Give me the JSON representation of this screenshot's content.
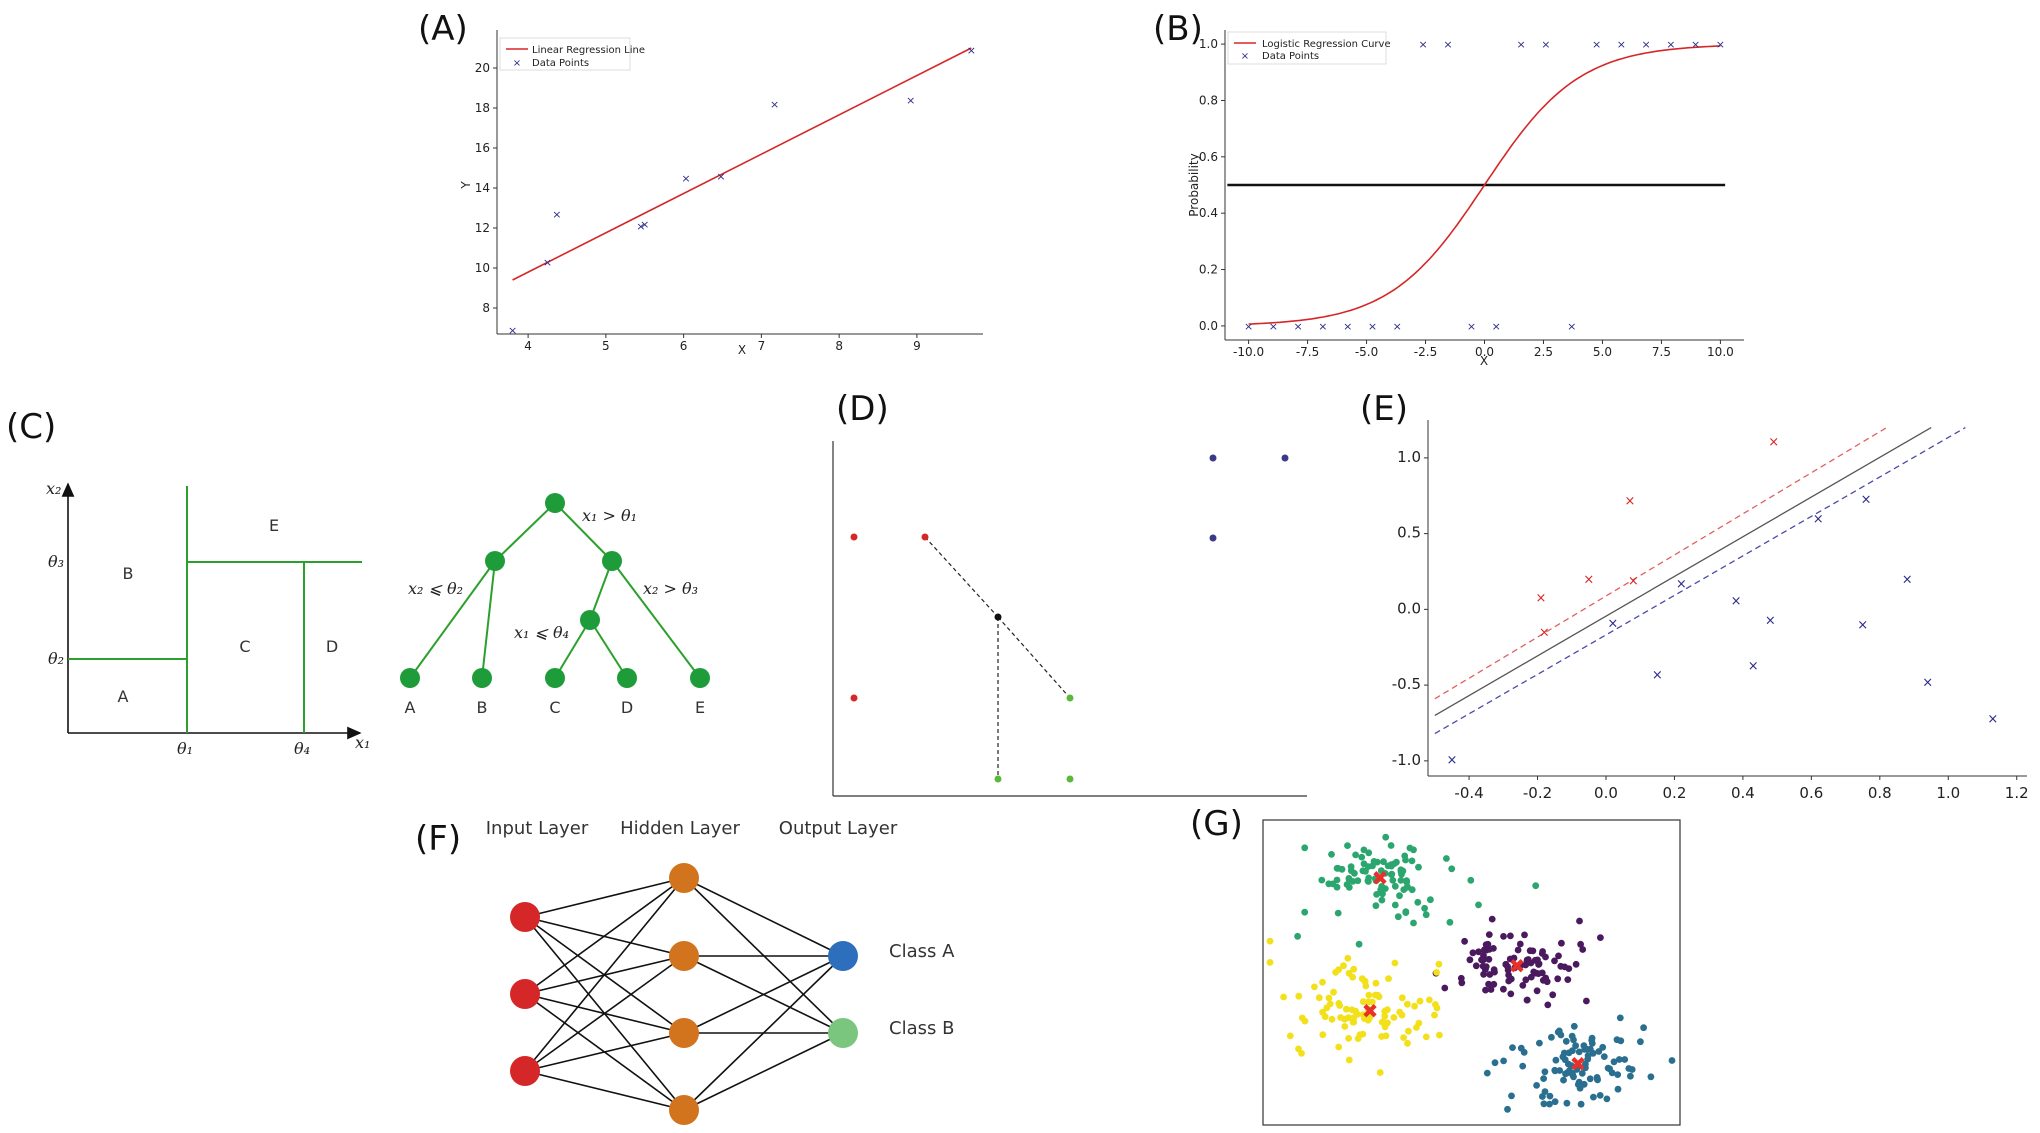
{
  "panel_labels": [
    "(A)",
    "(B)",
    "(C)",
    "(D)",
    "(E)",
    "(F)",
    "(G)"
  ],
  "colors": {
    "red_line": "#d62728",
    "blue_marker": "#2b2b8c",
    "green_tree": "#2ca02c",
    "input_node": "#d62728",
    "hidden_node": "#d2731e",
    "class_a_node": "#2e6fbd",
    "class_b_node": "#7bc67e",
    "cluster_green": "#2ca66f",
    "cluster_purple": "#4b1a5e",
    "cluster_yellow": "#f2e01a",
    "cluster_teal": "#2a6f8f",
    "centroid": "#e8302a"
  },
  "chart_data": [
    {
      "id": "A",
      "type": "scatter",
      "title": "",
      "xlabel": "X",
      "ylabel": "Y",
      "xlim": [
        3.6,
        9.85
      ],
      "ylim": [
        6.7,
        21.9
      ],
      "xticks": [
        4,
        5,
        6,
        7,
        8,
        9
      ],
      "yticks": [
        8,
        10,
        12,
        14,
        16,
        18,
        20
      ],
      "legend": [
        "Linear Regression Line",
        "Data Points"
      ],
      "legend_position": "top-left",
      "line": {
        "name": "Linear Regression Line",
        "x": [
          3.8,
          9.7
        ],
        "y": [
          9.4,
          21.0
        ]
      },
      "points": {
        "name": "Data Points",
        "x": [
          3.8,
          4.25,
          4.37,
          5.45,
          5.5,
          6.03,
          6.48,
          7.17,
          8.92,
          9.7
        ],
        "y": [
          6.9,
          10.3,
          12.7,
          12.1,
          12.2,
          14.5,
          14.6,
          18.2,
          18.4,
          20.9
        ]
      }
    },
    {
      "id": "B",
      "type": "line",
      "title": "",
      "xlabel": "X",
      "ylabel": "Probability",
      "xlim": [
        -11,
        11
      ],
      "ylim": [
        -0.05,
        1.05
      ],
      "xticks": [
        -10.0,
        -7.5,
        -5.0,
        -2.5,
        0.0,
        2.5,
        5.0,
        7.5,
        10.0
      ],
      "xtick_labels": [
        "-10.0",
        "-7.5",
        "-5.0",
        "-2.5",
        "0.0",
        "2.5",
        "5.0",
        "7.5",
        "10.0"
      ],
      "yticks": [
        0.0,
        0.2,
        0.4,
        0.6,
        0.8,
        1.0
      ],
      "ytick_labels": [
        "0.0",
        "0.2",
        "0.4",
        "0.6",
        "0.8",
        "1.0"
      ],
      "legend": [
        "Logistic Regression Curve",
        "Data Points"
      ],
      "legend_position": "top-left",
      "curve": {
        "name": "Logistic Regression Curve",
        "x_range": [
          -10,
          10
        ],
        "steepness": 0.5,
        "midpoint": 0
      },
      "threshold": 0.5,
      "points": {
        "name": "Data Points",
        "x": [
          -10.0,
          -8.95,
          -7.9,
          -6.85,
          -5.8,
          -4.75,
          -3.7,
          0.5,
          -0.55,
          3.7,
          -2.6,
          -1.55,
          1.55,
          2.6,
          4.75,
          5.8,
          6.85,
          7.9,
          8.95,
          10.0
        ],
        "y": [
          0,
          0,
          0,
          0,
          0,
          0,
          0,
          0,
          0,
          0,
          1,
          1,
          1,
          1,
          1,
          1,
          1,
          1,
          1,
          1
        ]
      }
    },
    {
      "id": "E",
      "type": "scatter",
      "title": "",
      "xlabel": "",
      "ylabel": "",
      "xlim": [
        -0.52,
        1.23
      ],
      "ylim": [
        -1.1,
        1.25
      ],
      "xticks": [
        -0.4,
        -0.2,
        0.0,
        0.2,
        0.4,
        0.6,
        0.8,
        1.0,
        1.2
      ],
      "xtick_labels": [
        "-0.4",
        "-0.2",
        "0.0",
        "0.2",
        "0.4",
        "0.6",
        "0.8",
        "1.0",
        "1.2"
      ],
      "yticks": [
        -1.0,
        -0.5,
        0.0,
        0.5,
        1.0
      ],
      "ytick_labels": [
        "-1.0",
        "-0.5",
        "0.0",
        "0.5",
        "1.0"
      ],
      "decision_boundary": {
        "x": [
          -0.5,
          0.95
        ],
        "y": [
          -0.7,
          1.2
        ]
      },
      "margin_upper": {
        "x": [
          -0.5,
          0.82
        ],
        "y": [
          -0.59,
          1.2
        ]
      },
      "margin_lower": {
        "x": [
          -0.5,
          1.05
        ],
        "y": [
          -0.82,
          1.2
        ]
      },
      "series": [
        {
          "name": "red",
          "x": [
            -0.19,
            -0.18,
            -0.05,
            0.07,
            0.08,
            0.49
          ],
          "y": [
            0.08,
            -0.15,
            0.2,
            0.72,
            0.19,
            1.11
          ]
        },
        {
          "name": "blue",
          "x": [
            -0.45,
            0.02,
            0.15,
            0.22,
            0.38,
            0.43,
            0.48,
            0.62,
            0.75,
            0.76,
            0.88,
            0.94,
            1.13
          ],
          "y": [
            -0.99,
            -0.09,
            -0.43,
            0.17,
            0.06,
            -0.37,
            -0.07,
            0.6,
            -0.1,
            0.73,
            0.2,
            -0.48,
            -0.72
          ]
        }
      ]
    }
  ],
  "panel_c": {
    "regions": [
      "A",
      "B",
      "C",
      "D",
      "E"
    ],
    "axis_x": "x₁",
    "axis_y": "x₂",
    "theta_ticks_x": [
      "θ₁",
      "θ₄"
    ],
    "theta_ticks_y": [
      "θ₂",
      "θ₃"
    ],
    "tree_conditions": [
      "x₁ > θ₁",
      "x₂ ⩽ θ₂",
      "x₂ > θ₃",
      "x₁ ⩽ θ₄"
    ],
    "tree_leaves": [
      "A",
      "B",
      "C",
      "D",
      "E"
    ]
  },
  "panel_f": {
    "layers": [
      "Input Layer",
      "Hidden Layer",
      "Output Layer"
    ],
    "input_count": 3,
    "hidden_count": 4,
    "outputs": [
      "Class A",
      "Class B"
    ]
  },
  "panel_g": {
    "clusters": [
      "green",
      "purple",
      "yellow",
      "teal"
    ],
    "centroid_marker": "✖"
  }
}
